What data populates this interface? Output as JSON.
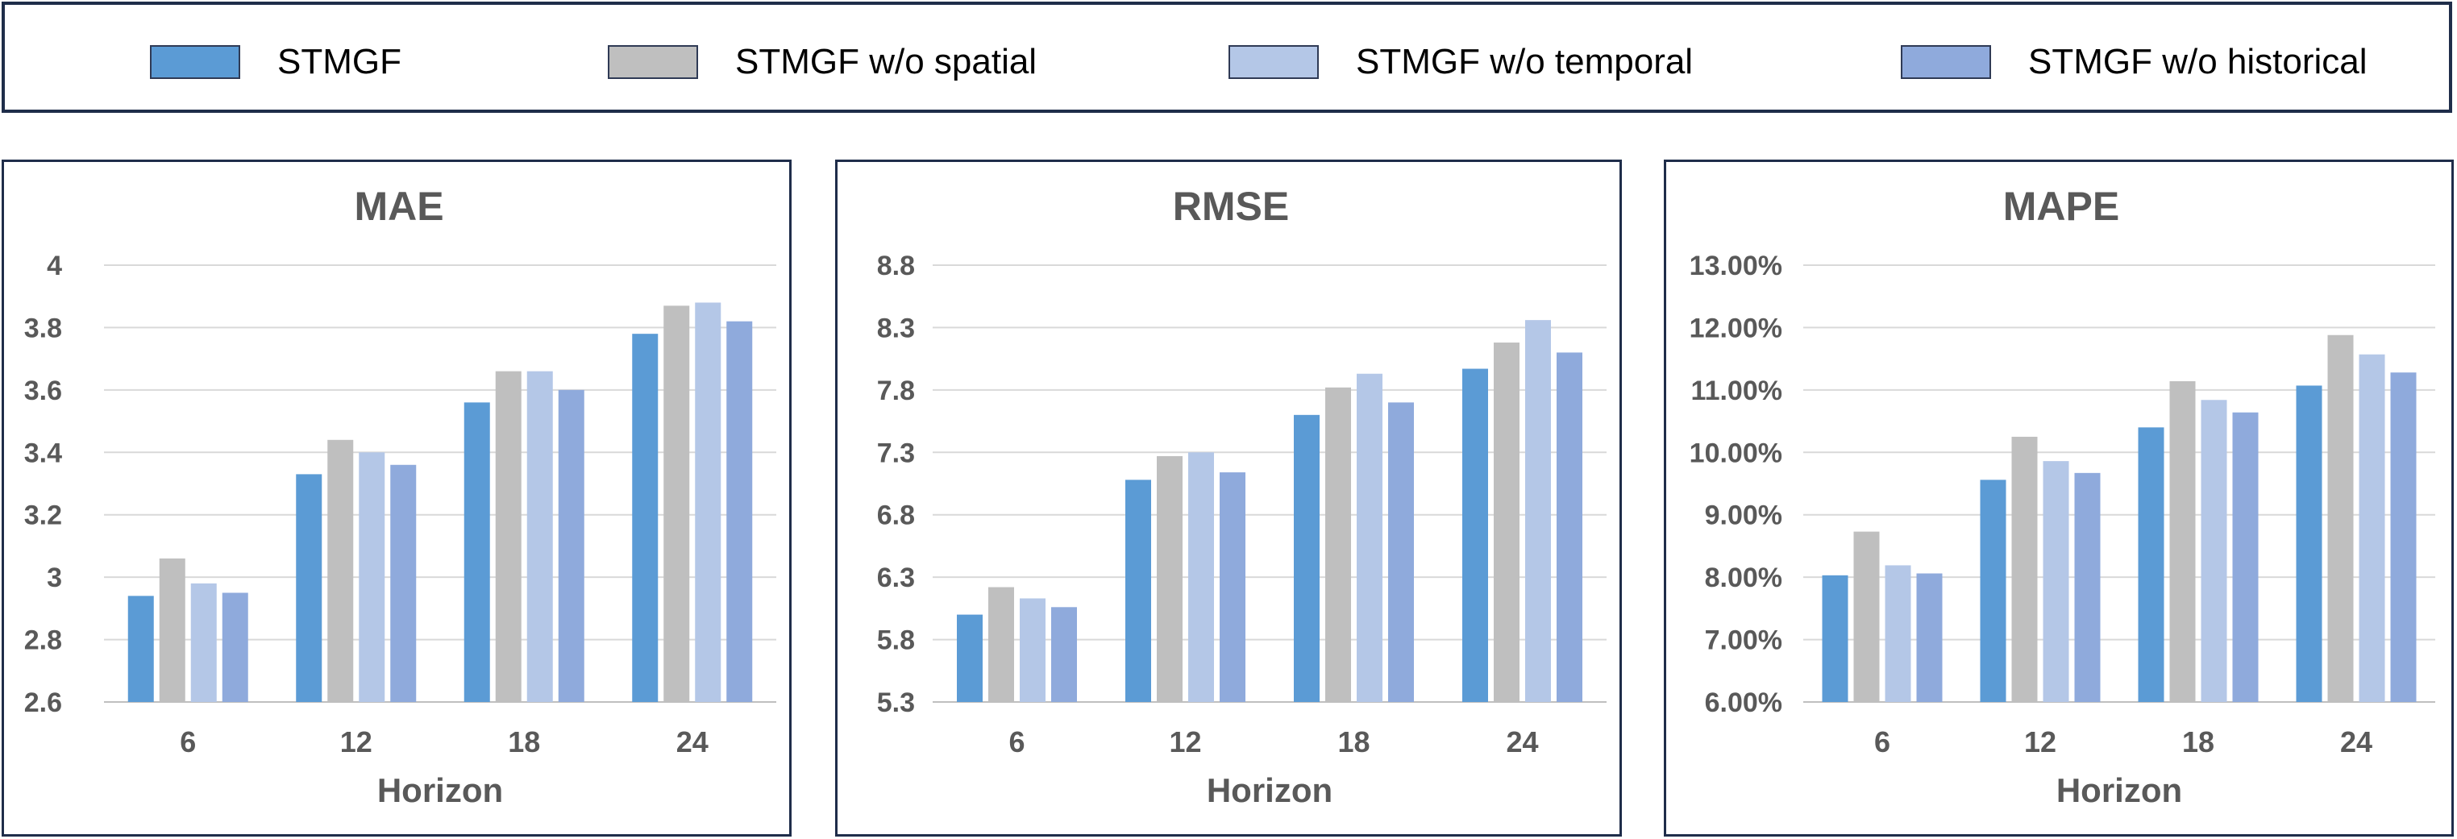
{
  "legend": {
    "items": [
      {
        "label": "STMGF",
        "color": "#5b9bd5"
      },
      {
        "label": "STMGF w/o spatial",
        "color": "#bfbfbf"
      },
      {
        "label": "STMGF w/o temporal",
        "color": "#b4c7e7"
      },
      {
        "label": "STMGF w/o historical",
        "color": "#8faadc"
      }
    ]
  },
  "chart_data": [
    {
      "type": "bar",
      "title": "MAE",
      "xlabel": "Horizon",
      "ylabel": "",
      "categories": [
        "6",
        "12",
        "18",
        "24"
      ],
      "ylim": [
        2.6,
        4.0
      ],
      "yticks": [
        2.6,
        2.8,
        3.0,
        3.2,
        3.4,
        3.6,
        3.8,
        4.0
      ],
      "ytick_labels": [
        "2.6",
        "2.8",
        "3",
        "3.2",
        "3.4",
        "3.6",
        "3.8",
        "4"
      ],
      "grid": true,
      "series": [
        {
          "name": "STMGF",
          "values": [
            2.94,
            3.33,
            3.56,
            3.78
          ]
        },
        {
          "name": "STMGF w/o spatial",
          "values": [
            3.06,
            3.44,
            3.66,
            3.87
          ]
        },
        {
          "name": "STMGF w/o temporal",
          "values": [
            2.98,
            3.4,
            3.66,
            3.88
          ]
        },
        {
          "name": "STMGF w/o historical",
          "values": [
            2.95,
            3.36,
            3.6,
            3.82
          ]
        }
      ]
    },
    {
      "type": "bar",
      "title": "RMSE",
      "xlabel": "Horizon",
      "ylabel": "",
      "categories": [
        "6",
        "12",
        "18",
        "24"
      ],
      "ylim": [
        5.3,
        8.8
      ],
      "yticks": [
        5.3,
        5.8,
        6.3,
        6.8,
        7.3,
        7.8,
        8.3,
        8.8
      ],
      "ytick_labels": [
        "5.3",
        "5.8",
        "6.3",
        "6.8",
        "7.3",
        "7.8",
        "8.3",
        "8.8"
      ],
      "grid": true,
      "series": [
        {
          "name": "STMGF",
          "values": [
            6.0,
            7.08,
            7.6,
            7.97
          ]
        },
        {
          "name": "STMGF w/o spatial",
          "values": [
            6.22,
            7.27,
            7.82,
            8.18
          ]
        },
        {
          "name": "STMGF w/o temporal",
          "values": [
            6.13,
            7.3,
            7.93,
            8.36
          ]
        },
        {
          "name": "STMGF w/o historical",
          "values": [
            6.06,
            7.14,
            7.7,
            8.1
          ]
        }
      ]
    },
    {
      "type": "bar",
      "title": "MAPE",
      "xlabel": "Horizon",
      "ylabel": "",
      "categories": [
        "6",
        "12",
        "18",
        "24"
      ],
      "ylim": [
        6.0,
        13.0
      ],
      "yticks": [
        6,
        7,
        8,
        9,
        10,
        11,
        12,
        13
      ],
      "ytick_labels": [
        "6.00%",
        "7.00%",
        "8.00%",
        "9.00%",
        "10.00%",
        "11.00%",
        "12.00%",
        "13.00%"
      ],
      "grid": true,
      "series": [
        {
          "name": "STMGF",
          "values": [
            8.03,
            9.56,
            10.4,
            11.07
          ]
        },
        {
          "name": "STMGF w/o spatial",
          "values": [
            8.73,
            10.25,
            11.14,
            11.88
          ]
        },
        {
          "name": "STMGF w/o temporal",
          "values": [
            8.19,
            9.86,
            10.84,
            11.57
          ]
        },
        {
          "name": "STMGF w/o historical",
          "values": [
            8.06,
            9.67,
            10.64,
            11.28
          ]
        }
      ]
    }
  ]
}
